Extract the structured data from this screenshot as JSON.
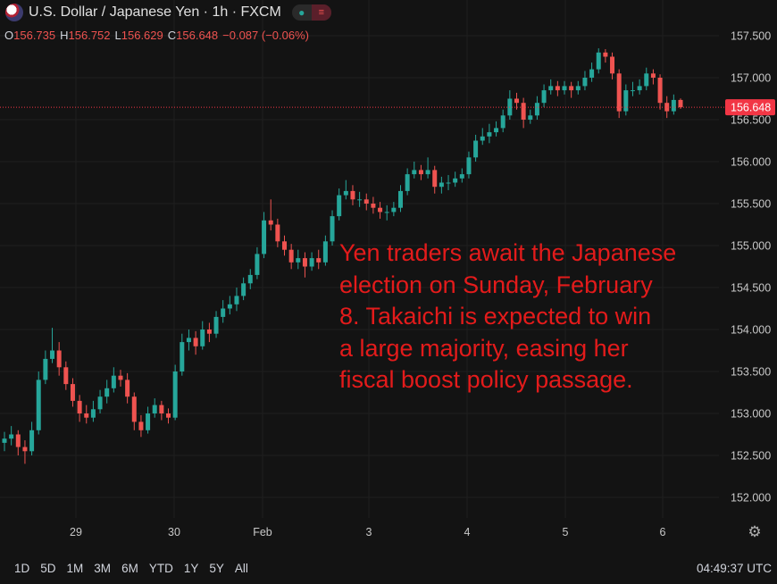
{
  "header": {
    "title": "U.S. Dollar / Japanese Yen · 1h · FXCM",
    "ohlc": {
      "o_label": "O",
      "o": "156.735",
      "h_label": "H",
      "h": "156.752",
      "l_label": "L",
      "l": "156.629",
      "c_label": "C",
      "c": "156.648",
      "change": "−0.087 (−0.06%)"
    }
  },
  "annotation": {
    "text": "Yen traders await the Japanese\nelection on Sunday, February\n8. Takaichi is expected to win\na large majority, easing her\nfiscal boost policy passage.",
    "color": "#e31b1b"
  },
  "toolbar": {
    "ranges": [
      "1D",
      "5D",
      "1M",
      "3M",
      "6M",
      "YTD",
      "1Y",
      "5Y",
      "All"
    ],
    "clock": "04:49:37 UTC",
    "settings_icon": "gear-icon"
  },
  "colors": {
    "up": "#26a69a",
    "down": "#ef5350",
    "background": "#131313",
    "grid": "#1f1f1f",
    "last_price": "#f23645"
  },
  "chart_data": {
    "type": "candlestick",
    "interval": "1h",
    "x_tick_labels": [
      "29",
      "30",
      "Feb",
      "3",
      "4",
      "5",
      "6"
    ],
    "y_tick_labels": [
      "152.000",
      "152.500",
      "153.000",
      "153.500",
      "154.000",
      "154.500",
      "155.000",
      "155.500",
      "156.000",
      "156.500",
      "157.000",
      "157.500"
    ],
    "ylim": [
      151.95,
      157.7
    ],
    "last_price": "156.648",
    "grid": true,
    "candles": [
      [
        152.65,
        152.78,
        152.55,
        152.7
      ],
      [
        152.7,
        152.85,
        152.62,
        152.75
      ],
      [
        152.75,
        152.8,
        152.5,
        152.6
      ],
      [
        152.6,
        152.68,
        152.4,
        152.55
      ],
      [
        152.55,
        152.9,
        152.5,
        152.8
      ],
      [
        152.8,
        153.5,
        152.75,
        153.4
      ],
      [
        153.4,
        153.75,
        153.35,
        153.65
      ],
      [
        153.65,
        154.02,
        153.6,
        153.75
      ],
      [
        153.75,
        153.85,
        153.45,
        153.55
      ],
      [
        153.55,
        153.62,
        153.28,
        153.35
      ],
      [
        153.35,
        153.42,
        153.08,
        153.15
      ],
      [
        153.15,
        153.22,
        152.9,
        153.0
      ],
      [
        153.0,
        153.1,
        152.88,
        152.95
      ],
      [
        152.95,
        153.15,
        152.9,
        153.05
      ],
      [
        153.05,
        153.28,
        153.0,
        153.2
      ],
      [
        153.2,
        153.4,
        153.12,
        153.3
      ],
      [
        153.3,
        153.55,
        153.25,
        153.45
      ],
      [
        153.45,
        153.52,
        153.32,
        153.4
      ],
      [
        153.4,
        153.48,
        153.12,
        153.2
      ],
      [
        153.2,
        153.25,
        152.8,
        152.9
      ],
      [
        152.9,
        152.98,
        152.72,
        152.8
      ],
      [
        152.8,
        153.08,
        152.76,
        153.0
      ],
      [
        153.0,
        153.18,
        152.95,
        153.1
      ],
      [
        153.1,
        153.15,
        152.92,
        153.0
      ],
      [
        153.0,
        153.06,
        152.88,
        152.95
      ],
      [
        152.95,
        153.58,
        152.92,
        153.5
      ],
      [
        153.5,
        153.95,
        153.45,
        153.85
      ],
      [
        153.85,
        154.0,
        153.75,
        153.9
      ],
      [
        153.9,
        153.98,
        153.7,
        153.8
      ],
      [
        153.8,
        154.1,
        153.76,
        154.0
      ],
      [
        154.0,
        154.08,
        153.85,
        153.95
      ],
      [
        153.95,
        154.22,
        153.9,
        154.15
      ],
      [
        154.15,
        154.35,
        154.08,
        154.25
      ],
      [
        154.25,
        154.4,
        154.18,
        154.3
      ],
      [
        154.3,
        154.5,
        154.22,
        154.4
      ],
      [
        154.4,
        154.62,
        154.35,
        154.55
      ],
      [
        154.55,
        154.72,
        154.48,
        154.65
      ],
      [
        154.65,
        154.98,
        154.6,
        154.9
      ],
      [
        154.9,
        155.4,
        154.85,
        155.3
      ],
      [
        155.3,
        155.55,
        155.18,
        155.25
      ],
      [
        155.25,
        155.32,
        154.98,
        155.05
      ],
      [
        155.05,
        155.12,
        154.88,
        154.95
      ],
      [
        154.95,
        155.02,
        154.72,
        154.8
      ],
      [
        154.8,
        154.95,
        154.72,
        154.85
      ],
      [
        154.85,
        154.92,
        154.62,
        154.75
      ],
      [
        154.75,
        154.92,
        154.7,
        154.85
      ],
      [
        154.85,
        154.95,
        154.72,
        154.8
      ],
      [
        154.8,
        155.12,
        154.76,
        155.05
      ],
      [
        155.05,
        155.42,
        155.0,
        155.35
      ],
      [
        155.35,
        155.68,
        155.3,
        155.6
      ],
      [
        155.6,
        155.78,
        155.55,
        155.65
      ],
      [
        155.65,
        155.72,
        155.48,
        155.55
      ],
      [
        155.55,
        155.64,
        155.46,
        155.55
      ],
      [
        155.55,
        155.62,
        155.42,
        155.5
      ],
      [
        155.5,
        155.58,
        155.38,
        155.45
      ],
      [
        155.45,
        155.52,
        155.32,
        155.4
      ],
      [
        155.4,
        155.48,
        155.3,
        155.4
      ],
      [
        155.4,
        155.52,
        155.35,
        155.45
      ],
      [
        155.45,
        155.72,
        155.4,
        155.65
      ],
      [
        155.65,
        155.92,
        155.6,
        155.85
      ],
      [
        155.85,
        156.0,
        155.8,
        155.9
      ],
      [
        155.9,
        155.96,
        155.78,
        155.85
      ],
      [
        155.85,
        156.05,
        155.8,
        155.9
      ],
      [
        155.9,
        155.95,
        155.62,
        155.7
      ],
      [
        155.7,
        155.82,
        155.62,
        155.75
      ],
      [
        155.75,
        155.84,
        155.66,
        155.75
      ],
      [
        155.75,
        155.88,
        155.7,
        155.8
      ],
      [
        155.8,
        155.92,
        155.75,
        155.85
      ],
      [
        155.85,
        156.12,
        155.8,
        156.05
      ],
      [
        156.05,
        156.32,
        156.0,
        156.25
      ],
      [
        156.25,
        156.4,
        156.2,
        156.3
      ],
      [
        156.3,
        156.45,
        156.22,
        156.35
      ],
      [
        156.35,
        156.48,
        156.3,
        156.4
      ],
      [
        156.4,
        156.62,
        156.35,
        156.55
      ],
      [
        156.55,
        156.85,
        156.5,
        156.75
      ],
      [
        156.75,
        156.82,
        156.62,
        156.7
      ],
      [
        156.7,
        156.76,
        156.4,
        156.5
      ],
      [
        156.5,
        156.62,
        156.45,
        156.55
      ],
      [
        156.55,
        156.78,
        156.5,
        156.7
      ],
      [
        156.7,
        156.92,
        156.65,
        156.85
      ],
      [
        156.85,
        156.98,
        156.8,
        156.9
      ],
      [
        156.9,
        156.96,
        156.78,
        156.85
      ],
      [
        156.85,
        156.96,
        156.8,
        156.9
      ],
      [
        156.9,
        156.95,
        156.76,
        156.85
      ],
      [
        156.85,
        156.96,
        156.8,
        156.9
      ],
      [
        156.9,
        157.08,
        156.85,
        157.0
      ],
      [
        157.0,
        157.18,
        156.95,
        157.1
      ],
      [
        157.1,
        157.35,
        157.05,
        157.3
      ],
      [
        157.3,
        157.34,
        157.18,
        157.25
      ],
      [
        157.25,
        157.3,
        156.98,
        157.05
      ],
      [
        157.05,
        157.1,
        156.52,
        156.6
      ],
      [
        156.6,
        156.92,
        156.55,
        156.85
      ],
      [
        156.85,
        156.95,
        156.78,
        156.85
      ],
      [
        156.85,
        156.98,
        156.8,
        156.9
      ],
      [
        156.9,
        157.12,
        156.85,
        157.05
      ],
      [
        157.05,
        157.1,
        156.92,
        157.0
      ],
      [
        157.0,
        157.04,
        156.62,
        156.7
      ],
      [
        156.7,
        156.78,
        156.52,
        156.6
      ],
      [
        156.6,
        156.8,
        156.56,
        156.735
      ],
      [
        156.735,
        156.752,
        156.629,
        156.648
      ]
    ]
  }
}
